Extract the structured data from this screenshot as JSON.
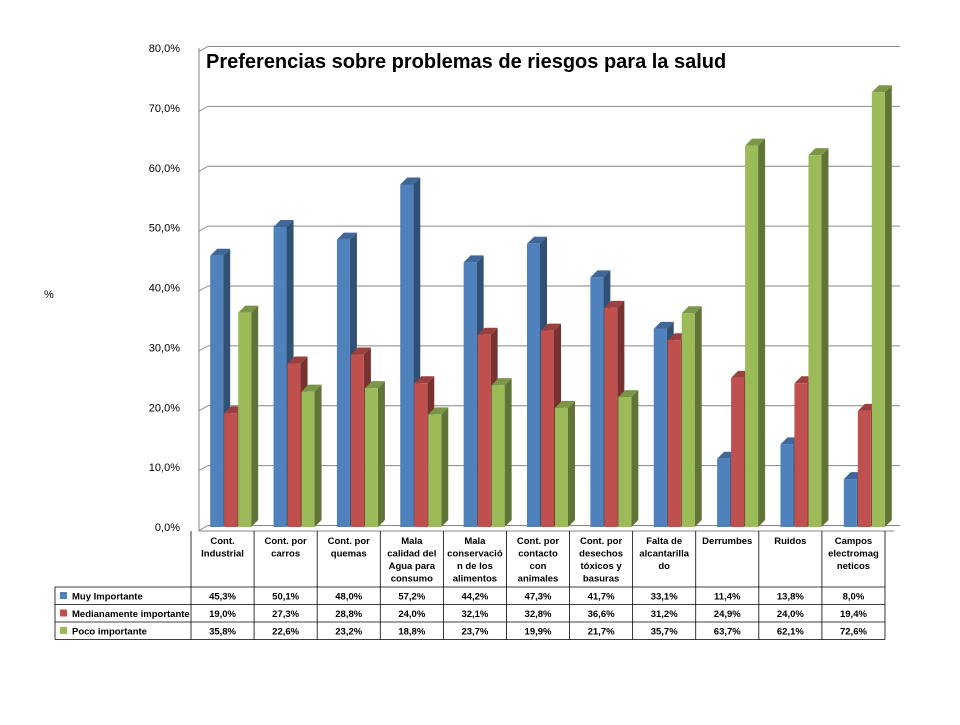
{
  "chart_data": {
    "type": "bar",
    "title": "Preferencias sobre problemas de riesgos para la salud",
    "ylabel": "%",
    "xlabel": "",
    "ylim": [
      0,
      80
    ],
    "yticks": [
      "0,0%",
      "10,0%",
      "20,0%",
      "30,0%",
      "40,0%",
      "50,0%",
      "60,0%",
      "70,0%",
      "80,0%"
    ],
    "grid": true,
    "legend": "data-table-left",
    "categories": [
      [
        "Cont.",
        "Industrial"
      ],
      [
        "Cont. por",
        "carros"
      ],
      [
        "Cont. por",
        "quemas"
      ],
      [
        "Mala",
        "calidad del",
        "Agua para",
        "consumo"
      ],
      [
        "Mala",
        "conservació",
        "n de los",
        "alimentos"
      ],
      [
        "Cont. por",
        "contacto",
        "con",
        "animales"
      ],
      [
        "Cont. por",
        "desechos",
        "tóxicos y",
        "basuras"
      ],
      [
        "Falta de",
        "alcantarilla",
        "do"
      ],
      [
        "Derrumbes"
      ],
      [
        "Ruidos"
      ],
      [
        "Campos",
        "electromag",
        "neticos"
      ]
    ],
    "series": [
      {
        "name": "Muy Importante",
        "color": "#4F81BD",
        "values": [
          45.3,
          50.1,
          48.0,
          57.2,
          44.2,
          47.3,
          41.7,
          33.1,
          11.4,
          13.8,
          8.0
        ],
        "labels": [
          "45,3%",
          "50,1%",
          "48,0%",
          "57,2%",
          "44,2%",
          "47,3%",
          "41,7%",
          "33,1%",
          "11,4%",
          "13,8%",
          "8,0%"
        ]
      },
      {
        "name": "Medianamente importante",
        "color": "#C0504D",
        "values": [
          19.0,
          27.3,
          28.8,
          24.0,
          32.1,
          32.8,
          36.6,
          31.2,
          24.9,
          24.0,
          19.4
        ],
        "labels": [
          "19,0%",
          "27,3%",
          "28,8%",
          "24,0%",
          "32,1%",
          "32,8%",
          "36,6%",
          "31,2%",
          "24,9%",
          "24,0%",
          "19,4%"
        ]
      },
      {
        "name": "Poco importante",
        "color": "#9BBB59",
        "values": [
          35.8,
          22.6,
          23.2,
          18.8,
          23.7,
          19.9,
          21.7,
          35.7,
          63.7,
          62.1,
          72.6
        ],
        "labels": [
          "35,8%",
          "22,6%",
          "23,2%",
          "18,8%",
          "23,7%",
          "19,9%",
          "21,7%",
          "35,7%",
          "63,7%",
          "62,1%",
          "72,6%"
        ]
      }
    ]
  }
}
